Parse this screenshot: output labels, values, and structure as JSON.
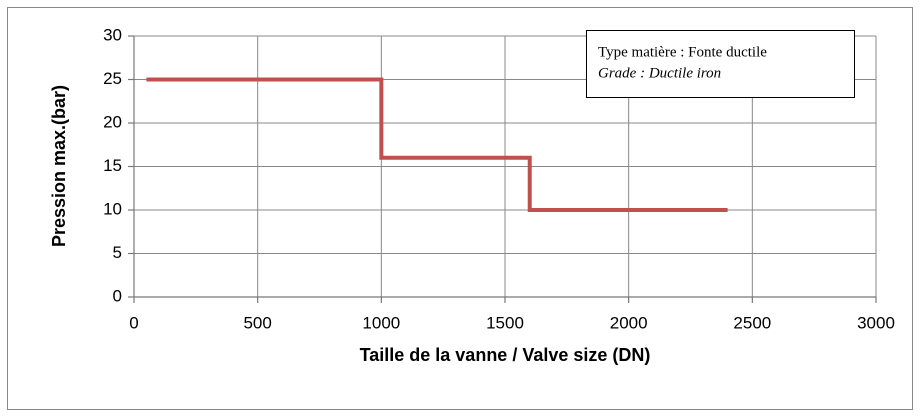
{
  "chart_data": {
    "type": "line",
    "xlabel": "Taille de la vanne / Valve size (DN)",
    "ylabel": "Pression max.(bar)",
    "annotations": [
      "Type matière : Fonte ductile",
      "Grade : Ductile iron"
    ],
    "x": [
      50,
      1000,
      1000,
      1600,
      1600,
      2400
    ],
    "values": [
      25,
      25,
      16,
      16,
      10,
      10
    ],
    "color": "#c0504d",
    "xlim": [
      0,
      3000
    ],
    "xticks": [
      0,
      500,
      1000,
      1500,
      2000,
      2500,
      3000
    ],
    "ylim": [
      0,
      30
    ],
    "yticks": [
      0,
      5,
      10,
      15,
      20,
      25,
      30
    ],
    "grid": true
  }
}
